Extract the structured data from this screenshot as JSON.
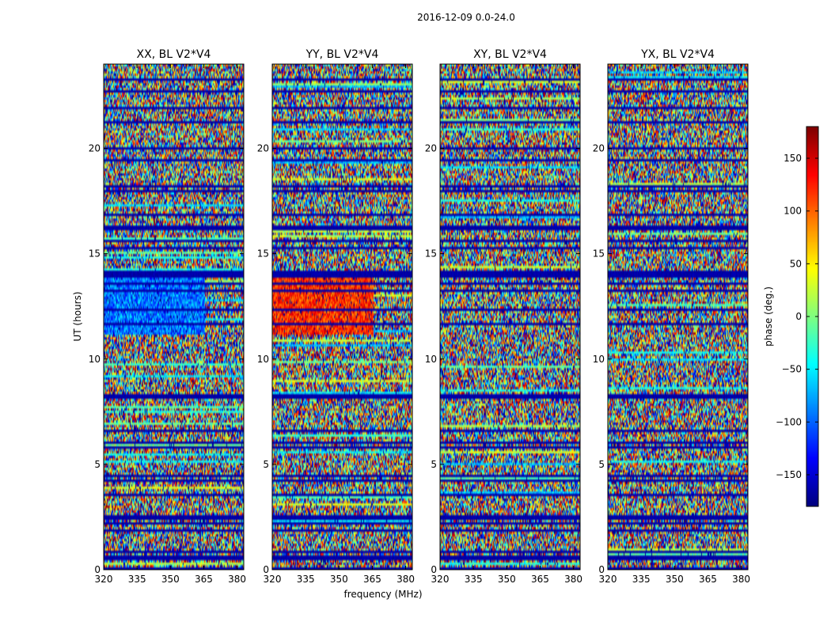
{
  "chart_data": {
    "type": "heatmap",
    "title": "2016-12-09 0.0-24.0",
    "xlabel": "frequency (MHz)",
    "ylabel": "UT (hours)",
    "xlim": [
      320,
      383
    ],
    "ylim": [
      0,
      24
    ],
    "xticks": [
      "320",
      "335",
      "350",
      "365",
      "380"
    ],
    "yticks": [
      "0",
      "5",
      "10",
      "15",
      "20"
    ],
    "colorbar": {
      "label": "phase (deg.)",
      "range": [
        -180,
        180
      ],
      "ticks": [
        "−150",
        "−100",
        "−50",
        "0",
        "50",
        "100",
        "150"
      ],
      "colormap": "jet"
    },
    "panels": [
      {
        "title": "XX, BL V2*V4",
        "feature": "blue",
        "feature_range": [
          11.2,
          13.9
        ]
      },
      {
        "title": "YY, BL V2*V4",
        "feature": "red",
        "feature_range": [
          11.2,
          13.9
        ]
      },
      {
        "title": "XY, BL V2*V4",
        "feature": "none"
      },
      {
        "title": "YX, BL V2*V4",
        "feature": "none"
      }
    ]
  }
}
